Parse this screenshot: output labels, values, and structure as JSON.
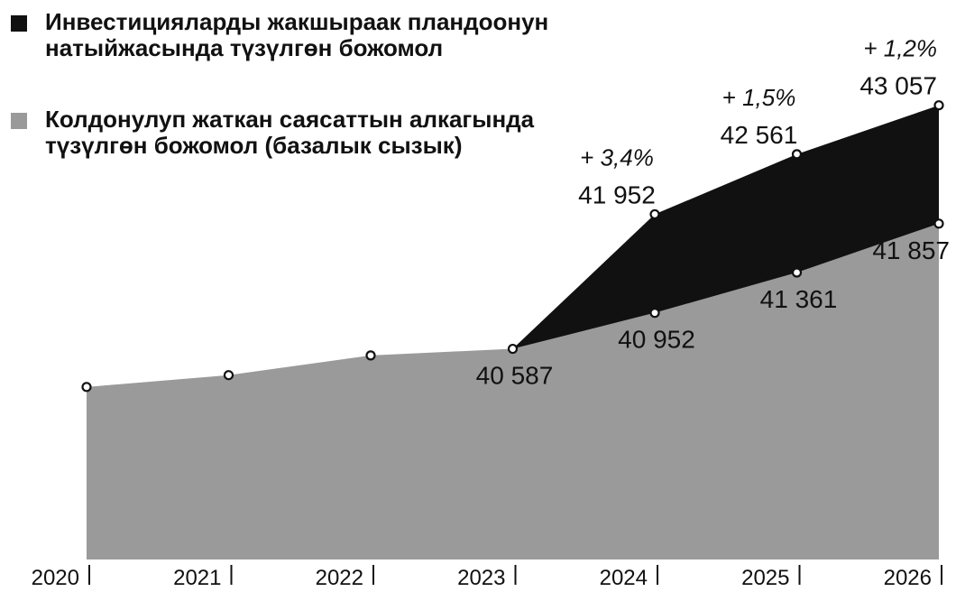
{
  "chart_data": {
    "type": "area",
    "categories": [
      "2020",
      "2021",
      "2022",
      "2023",
      "2024",
      "2025",
      "2026"
    ],
    "series": [
      {
        "name": "Колдонулуп жаткан саясаттын алкагында түзүлгөн божомол (базалык сызык)",
        "color": "#9a9a9a",
        "values": [
          40200,
          40320,
          40520,
          40587,
          40952,
          41361,
          41857
        ]
      },
      {
        "name": "Инвестицияларды жакшыраак пландоонун натыйжасында түзүлгөн божомол",
        "color": "#111111",
        "values": [
          null,
          null,
          null,
          40587,
          41952,
          42561,
          43057
        ]
      }
    ],
    "ylim": [
      38450,
      43100
    ],
    "value_labels": [
      {
        "series": 0,
        "index": 3,
        "text": "40 587"
      },
      {
        "series": 0,
        "index": 4,
        "text": "40 952"
      },
      {
        "series": 0,
        "index": 5,
        "text": "41 361"
      },
      {
        "series": 0,
        "index": 6,
        "text": "41 857"
      },
      {
        "series": 1,
        "index": 4,
        "text": "41 952",
        "pct": "+ 3,4%"
      },
      {
        "series": 1,
        "index": 5,
        "text": "42 561",
        "pct": "+ 1,5%"
      },
      {
        "series": 1,
        "index": 6,
        "text": "43 057",
        "pct": "+ 1,2%"
      }
    ],
    "legend_position": "top-left",
    "grid": false
  }
}
